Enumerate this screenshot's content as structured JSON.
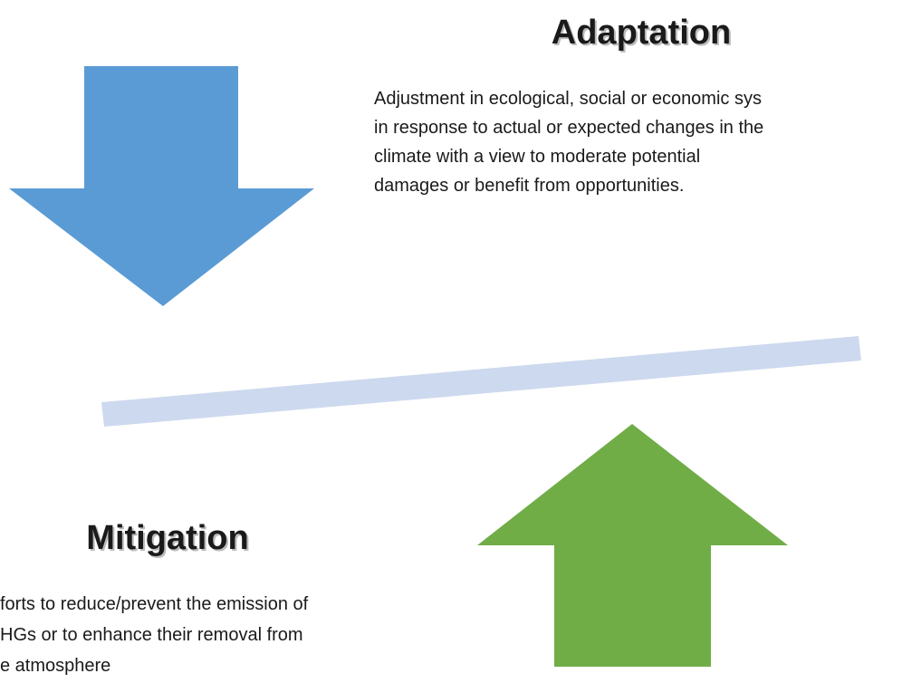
{
  "adaptation": {
    "title": "Adaptation",
    "lines": [
      "Adjustment in ecological, social or economic sys",
      "in response to actual or expected changes in the",
      "climate with a view to moderate potential",
      "damages or benefit from opportunities."
    ]
  },
  "mitigation": {
    "title": "Mitigation",
    "lines": [
      "forts to reduce/prevent the emission of",
      "HGs or to enhance their removal from",
      "e atmosphere"
    ]
  }
}
